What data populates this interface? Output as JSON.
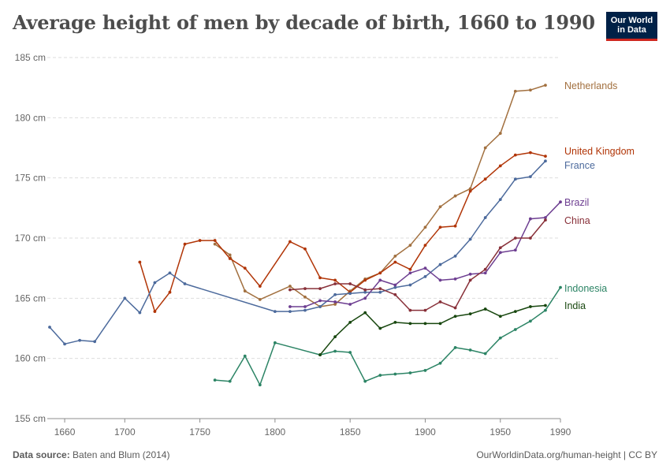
{
  "title": "Average height of men by decade of birth, 1660 to 1990",
  "logo": {
    "line1": "Our World",
    "line2": "in Data"
  },
  "footer": {
    "source_label": "Data source:",
    "source_value": "Baten and Blum (2014)",
    "credit": "OurWorldinData.org/human-height | CC BY"
  },
  "chart_data": {
    "type": "line",
    "title": "Average height of men by decade of birth, 1660 to 1990",
    "xlim": [
      1650,
      1990
    ],
    "ylim": [
      155,
      185
    ],
    "x_ticks": [
      1660,
      1700,
      1750,
      1800,
      1850,
      1900,
      1950,
      1990
    ],
    "y_ticks": [
      155,
      160,
      165,
      170,
      175,
      180,
      185
    ],
    "y_tick_labels": [
      "155 cm",
      "160 cm",
      "165 cm",
      "170 cm",
      "175 cm",
      "180 cm",
      "185 cm"
    ],
    "grid": "horizontal dashed",
    "legend": "right, inline labels",
    "series": [
      {
        "name": "Netherlands",
        "color": "#a2703f",
        "points": [
          [
            1760,
            169.5
          ],
          [
            1770,
            168.6
          ],
          [
            1780,
            165.6
          ],
          [
            1790,
            164.9
          ],
          [
            1810,
            166.0
          ],
          [
            1820,
            165.1
          ],
          [
            1830,
            164.3
          ],
          [
            1840,
            164.5
          ],
          [
            1850,
            165.6
          ],
          [
            1860,
            166.6
          ],
          [
            1870,
            167.1
          ],
          [
            1880,
            168.5
          ],
          [
            1890,
            169.4
          ],
          [
            1900,
            170.9
          ],
          [
            1910,
            172.6
          ],
          [
            1920,
            173.5
          ],
          [
            1930,
            174.1
          ],
          [
            1940,
            177.5
          ],
          [
            1950,
            178.7
          ],
          [
            1960,
            182.2
          ],
          [
            1970,
            182.3
          ],
          [
            1980,
            182.7
          ]
        ]
      },
      {
        "name": "United Kingdom",
        "color": "#b13507",
        "points": [
          [
            1710,
            168.0
          ],
          [
            1720,
            163.9
          ],
          [
            1730,
            165.5
          ],
          [
            1740,
            169.5
          ],
          [
            1750,
            169.8
          ],
          [
            1760,
            169.8
          ],
          [
            1770,
            168.3
          ],
          [
            1780,
            167.5
          ],
          [
            1790,
            166.0
          ],
          [
            1810,
            169.7
          ],
          [
            1820,
            169.1
          ],
          [
            1830,
            166.7
          ],
          [
            1840,
            166.5
          ],
          [
            1850,
            165.5
          ],
          [
            1860,
            166.5
          ],
          [
            1870,
            167.1
          ],
          [
            1880,
            168.0
          ],
          [
            1890,
            167.4
          ],
          [
            1900,
            169.4
          ],
          [
            1910,
            170.9
          ],
          [
            1920,
            171.0
          ],
          [
            1930,
            173.9
          ],
          [
            1940,
            174.9
          ],
          [
            1950,
            176.0
          ],
          [
            1960,
            176.9
          ],
          [
            1970,
            177.1
          ],
          [
            1980,
            176.8
          ]
        ]
      },
      {
        "name": "France",
        "color": "#4c6a9c",
        "points": [
          [
            1650,
            162.6
          ],
          [
            1660,
            161.2
          ],
          [
            1670,
            161.5
          ],
          [
            1680,
            161.4
          ],
          [
            1700,
            165.0
          ],
          [
            1710,
            163.8
          ],
          [
            1720,
            166.3
          ],
          [
            1730,
            167.1
          ],
          [
            1740,
            166.2
          ],
          [
            1800,
            163.9
          ],
          [
            1810,
            163.9
          ],
          [
            1820,
            164.0
          ],
          [
            1830,
            164.3
          ],
          [
            1840,
            165.3
          ],
          [
            1850,
            165.4
          ],
          [
            1860,
            165.5
          ],
          [
            1870,
            165.5
          ],
          [
            1880,
            165.9
          ],
          [
            1890,
            166.1
          ],
          [
            1900,
            166.8
          ],
          [
            1910,
            167.8
          ],
          [
            1920,
            168.5
          ],
          [
            1930,
            169.9
          ],
          [
            1940,
            171.7
          ],
          [
            1950,
            173.2
          ],
          [
            1960,
            174.9
          ],
          [
            1970,
            175.1
          ],
          [
            1980,
            176.4
          ]
        ]
      },
      {
        "name": "Brazil",
        "color": "#6d3e91",
        "points": [
          [
            1810,
            164.3
          ],
          [
            1820,
            164.3
          ],
          [
            1830,
            164.8
          ],
          [
            1840,
            164.7
          ],
          [
            1850,
            164.5
          ],
          [
            1860,
            165.0
          ],
          [
            1870,
            166.5
          ],
          [
            1880,
            166.1
          ],
          [
            1890,
            167.1
          ],
          [
            1900,
            167.5
          ],
          [
            1910,
            166.5
          ],
          [
            1920,
            166.6
          ],
          [
            1930,
            167.0
          ],
          [
            1940,
            167.1
          ],
          [
            1950,
            168.8
          ],
          [
            1960,
            169.0
          ],
          [
            1970,
            171.6
          ],
          [
            1980,
            171.7
          ],
          [
            1990,
            173.0
          ]
        ]
      },
      {
        "name": "China",
        "color": "#883039",
        "points": [
          [
            1810,
            165.7
          ],
          [
            1820,
            165.8
          ],
          [
            1830,
            165.8
          ],
          [
            1840,
            166.2
          ],
          [
            1850,
            166.2
          ],
          [
            1860,
            165.7
          ],
          [
            1870,
            165.8
          ],
          [
            1880,
            165.3
          ],
          [
            1890,
            164.0
          ],
          [
            1900,
            164.0
          ],
          [
            1910,
            164.7
          ],
          [
            1920,
            164.2
          ],
          [
            1930,
            166.5
          ],
          [
            1940,
            167.4
          ],
          [
            1950,
            169.2
          ],
          [
            1960,
            170.0
          ],
          [
            1970,
            170.0
          ],
          [
            1980,
            171.5
          ]
        ]
      },
      {
        "name": "Indonesia",
        "color": "#2c8465",
        "points": [
          [
            1760,
            158.2
          ],
          [
            1770,
            158.1
          ],
          [
            1780,
            160.2
          ],
          [
            1790,
            157.8
          ],
          [
            1800,
            161.3
          ],
          [
            1830,
            160.3
          ],
          [
            1840,
            160.6
          ],
          [
            1850,
            160.5
          ],
          [
            1860,
            158.1
          ],
          [
            1870,
            158.6
          ],
          [
            1880,
            158.7
          ],
          [
            1890,
            158.8
          ],
          [
            1900,
            159.0
          ],
          [
            1910,
            159.6
          ],
          [
            1920,
            160.9
          ],
          [
            1930,
            160.7
          ],
          [
            1940,
            160.4
          ],
          [
            1950,
            161.7
          ],
          [
            1960,
            162.4
          ],
          [
            1970,
            163.1
          ],
          [
            1980,
            164.0
          ],
          [
            1990,
            165.9
          ]
        ]
      },
      {
        "name": "India",
        "color": "#18470f",
        "points": [
          [
            1830,
            160.3
          ],
          [
            1840,
            161.8
          ],
          [
            1850,
            163.0
          ],
          [
            1860,
            163.8
          ],
          [
            1870,
            162.5
          ],
          [
            1880,
            163.0
          ],
          [
            1890,
            162.9
          ],
          [
            1900,
            162.9
          ],
          [
            1910,
            162.9
          ],
          [
            1920,
            163.5
          ],
          [
            1930,
            163.7
          ],
          [
            1940,
            164.1
          ],
          [
            1950,
            163.5
          ],
          [
            1960,
            163.9
          ],
          [
            1970,
            164.3
          ],
          [
            1980,
            164.4
          ]
        ]
      }
    ]
  }
}
